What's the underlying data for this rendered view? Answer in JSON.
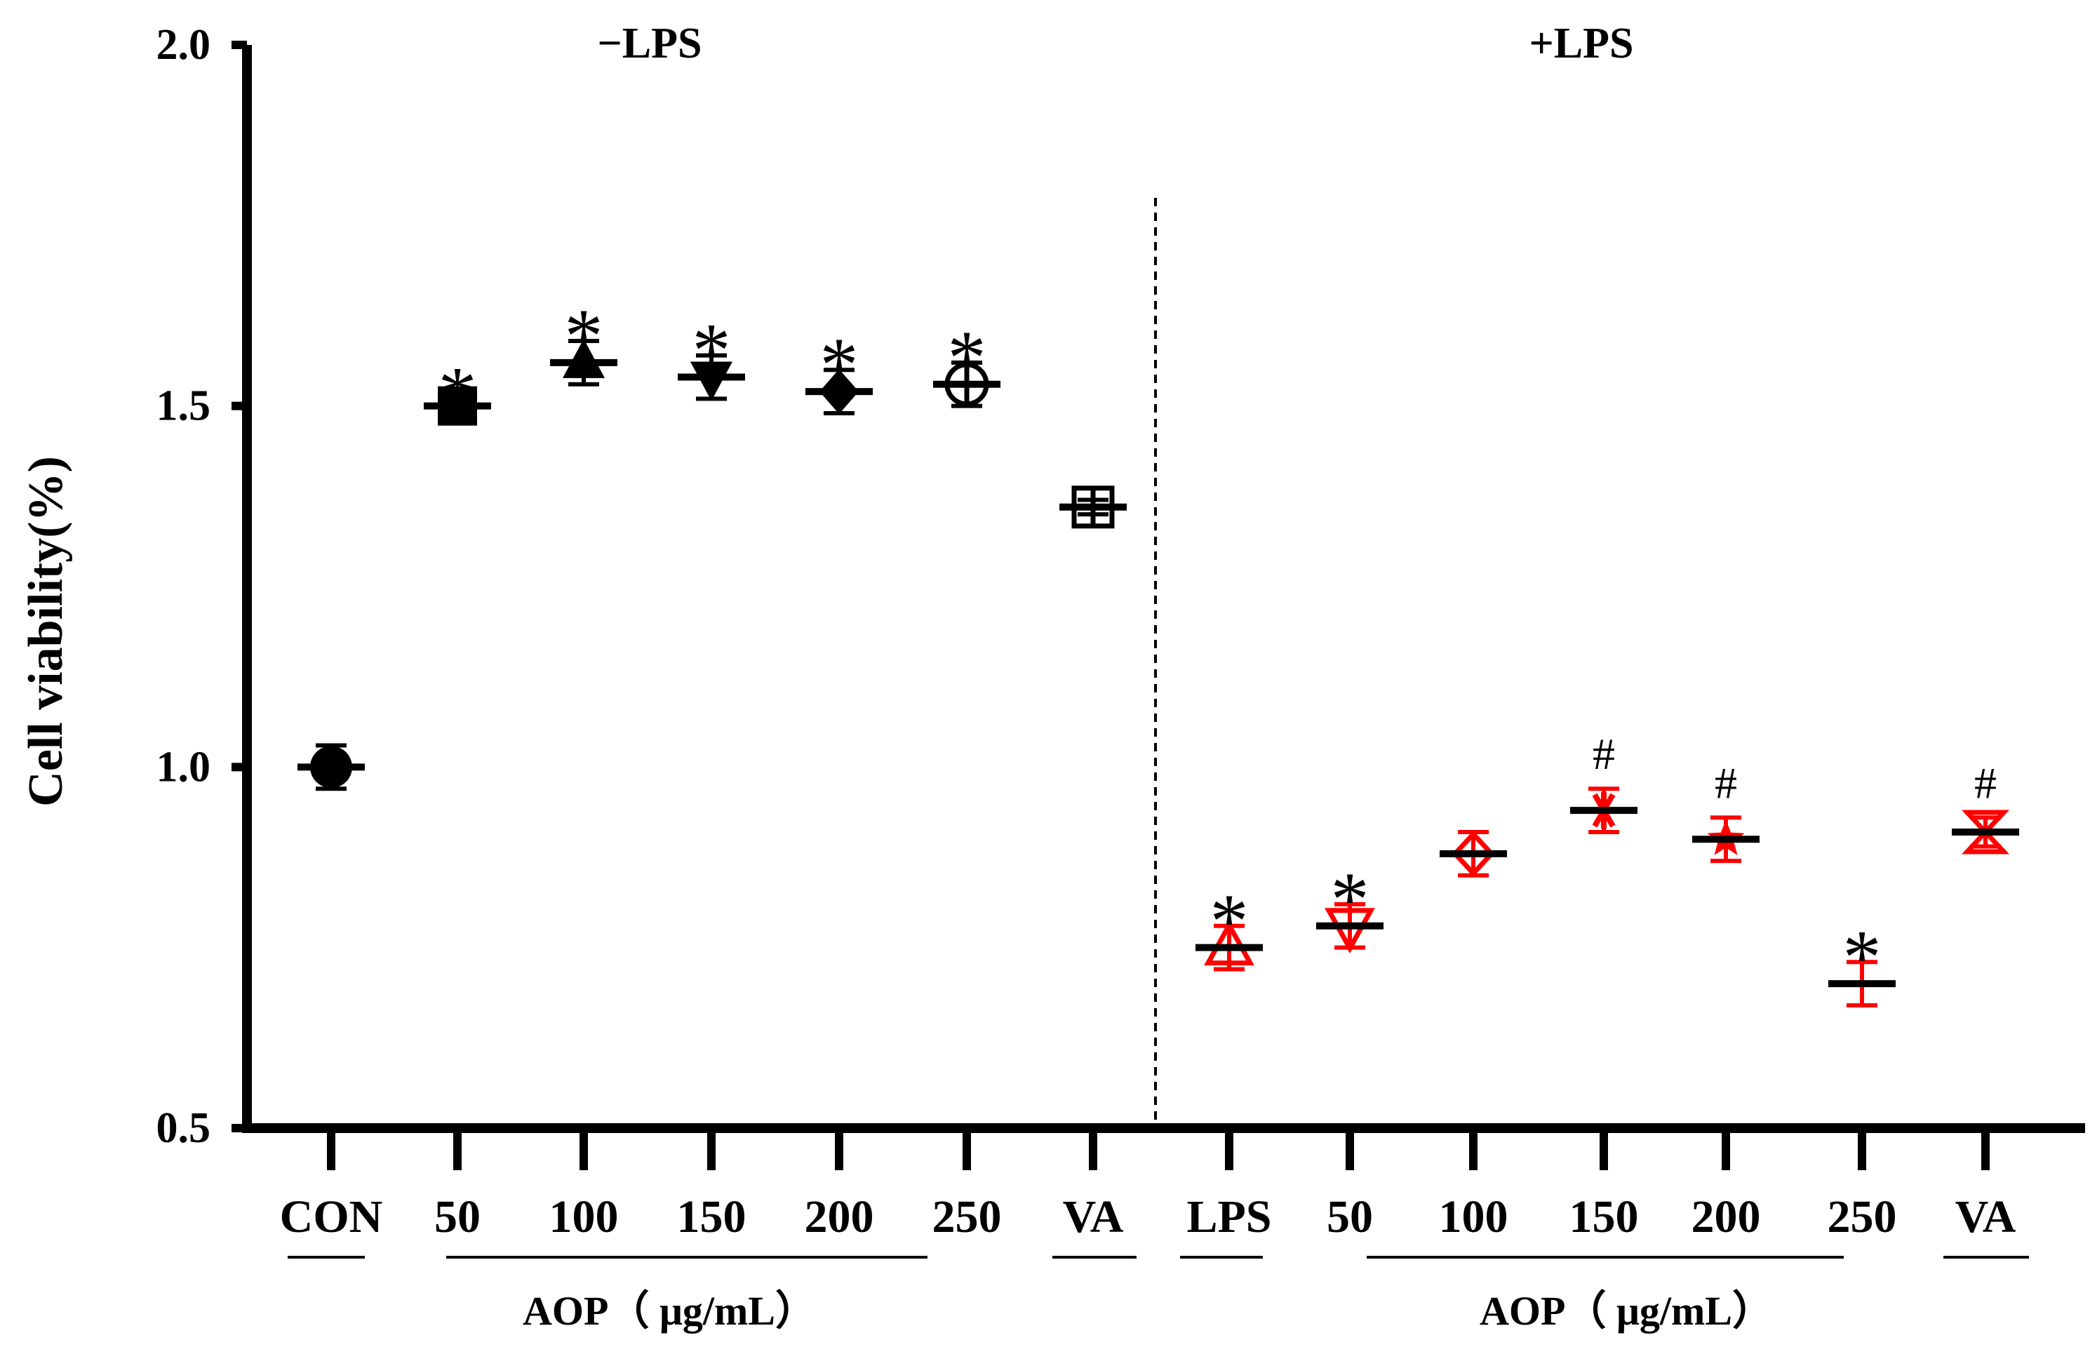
{
  "chart_data": {
    "type": "scatter",
    "ylabel": "Cell viability(%)",
    "ylim": [
      0.5,
      2.0
    ],
    "yticks": [
      "0.5",
      "1.0",
      "1.5",
      "2.0"
    ],
    "grid": false,
    "panels": [
      {
        "label": "−LPS"
      },
      {
        "label": "+LPS"
      }
    ],
    "group_labels": [
      {
        "text": "AOP（ μg/mL）"
      },
      {
        "text": "AOP（ μg/mL）"
      }
    ],
    "colors": {
      "black": "#000000",
      "red": "#ff0000"
    },
    "points": [
      {
        "label": "CON",
        "value": 1.0,
        "err": 0.03,
        "marker": "circle-filled",
        "color": "#000000",
        "annotation": ""
      },
      {
        "label": "50",
        "value": 1.5,
        "err": 0.01,
        "marker": "square-filled",
        "color": "#000000",
        "annotation": "*"
      },
      {
        "label": "100",
        "value": 1.56,
        "err": 0.03,
        "marker": "triangle-up-filled",
        "color": "#000000",
        "annotation": "*"
      },
      {
        "label": "150",
        "value": 1.54,
        "err": 0.03,
        "marker": "triangle-down-filled",
        "color": "#000000",
        "annotation": "*"
      },
      {
        "label": "200",
        "value": 1.52,
        "err": 0.03,
        "marker": "diamond-filled",
        "color": "#000000",
        "annotation": "*"
      },
      {
        "label": "250",
        "value": 1.53,
        "err": 0.03,
        "marker": "circle-plus-open",
        "color": "#000000",
        "annotation": "*"
      },
      {
        "label": "VA",
        "value": 1.36,
        "err": 0.01,
        "marker": "square-plus-open",
        "color": "#000000",
        "annotation": ""
      },
      {
        "label": "LPS",
        "value": 0.75,
        "err": 0.03,
        "marker": "triangle-up-open",
        "color": "#ff0000",
        "annotation": "*"
      },
      {
        "label": "50",
        "value": 0.78,
        "err": 0.03,
        "marker": "triangle-down-open",
        "color": "#ff0000",
        "annotation": "*"
      },
      {
        "label": "100",
        "value": 0.88,
        "err": 0.03,
        "marker": "diamond-open",
        "color": "#ff0000",
        "annotation": ""
      },
      {
        "label": "150",
        "value": 0.94,
        "err": 0.03,
        "marker": "asterisk",
        "color": "#ff0000",
        "annotation": "#"
      },
      {
        "label": "200",
        "value": 0.9,
        "err": 0.03,
        "marker": "star",
        "color": "#ff0000",
        "annotation": "#"
      },
      {
        "label": "250",
        "value": 0.7,
        "err": 0.03,
        "marker": "none",
        "color": "#ff0000",
        "annotation": "*"
      },
      {
        "label": "VA",
        "value": 0.91,
        "err": 0.02,
        "marker": "hourglass-open",
        "color": "#ff0000",
        "annotation": "#"
      }
    ]
  }
}
